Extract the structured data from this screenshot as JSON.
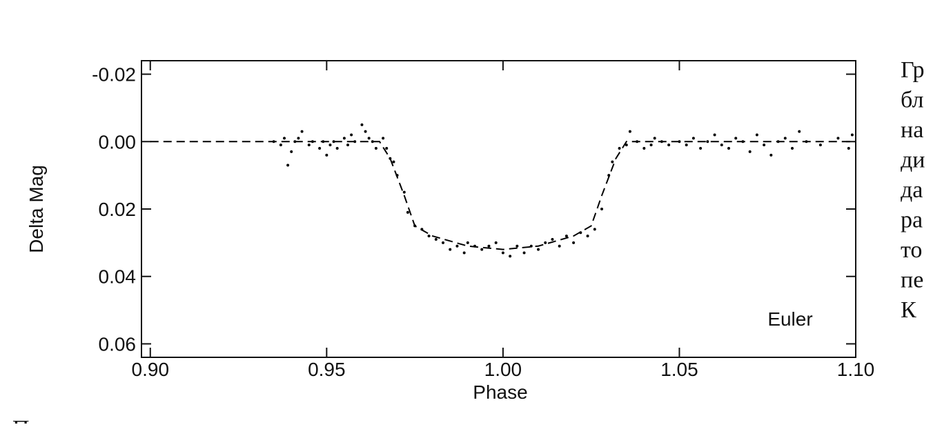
{
  "chart_data": {
    "type": "scatter",
    "xlabel": "Phase",
    "ylabel": "Delta Mag",
    "annotation": "Euler",
    "xlim": [
      0.8975,
      1.1
    ],
    "ylim": [
      -0.024,
      0.064
    ],
    "y_inverted": true,
    "xticks": [
      {
        "value": 0.9,
        "label": "0.90"
      },
      {
        "value": 0.95,
        "label": "0.95"
      },
      {
        "value": 1.0,
        "label": "1.00"
      },
      {
        "value": 1.05,
        "label": "1.05"
      },
      {
        "value": 1.1,
        "label": "1.10"
      }
    ],
    "yticks": [
      {
        "value": -0.02,
        "label": "-0.02"
      },
      {
        "value": 0,
        "label": "0.00"
      },
      {
        "value": 0.02,
        "label": "0.02"
      },
      {
        "value": 0.04,
        "label": "0.04"
      },
      {
        "value": 0.06,
        "label": "0.06"
      }
    ],
    "series": [
      {
        "type": "scatter",
        "color": "#000000",
        "x": [
          0.935,
          0.937,
          0.938,
          0.939,
          0.94,
          0.941,
          0.942,
          0.943,
          0.945,
          0.946,
          0.948,
          0.949,
          0.95,
          0.951,
          0.952,
          0.953,
          0.955,
          0.956,
          0.957,
          0.958,
          0.96,
          0.961,
          0.962,
          0.963,
          0.964,
          0.966,
          0.967,
          0.968,
          0.969,
          0.97,
          0.972,
          0.973,
          0.975,
          0.977,
          0.979,
          0.981,
          0.983,
          0.985,
          0.987,
          0.989,
          0.99,
          0.992,
          0.994,
          0.996,
          0.998,
          1.0,
          1.002,
          1.004,
          1.006,
          1.008,
          1.01,
          1.012,
          1.014,
          1.016,
          1.018,
          1.02,
          1.022,
          1.024,
          1.026,
          1.028,
          1.03,
          1.031,
          1.033,
          1.035,
          1.036,
          1.038,
          1.04,
          1.042,
          1.043,
          1.045,
          1.047,
          1.05,
          1.052,
          1.054,
          1.056,
          1.058,
          1.06,
          1.062,
          1.064,
          1.066,
          1.068,
          1.07,
          1.072,
          1.074,
          1.076,
          1.078,
          1.08,
          1.082,
          1.084,
          1.086,
          1.09,
          1.095,
          1.098,
          1.099
        ],
        "values": [
          0.0,
          0.001,
          -0.001,
          0.007,
          0.003,
          0.0,
          -0.001,
          -0.003,
          0.001,
          0.0,
          0.002,
          0.0,
          0.004,
          0.001,
          0.0,
          0.002,
          -0.001,
          0.001,
          -0.002,
          0.0,
          -0.005,
          -0.003,
          -0.001,
          0.0,
          0.002,
          -0.001,
          0.002,
          0.005,
          0.006,
          0.01,
          0.015,
          0.021,
          0.025,
          0.026,
          0.028,
          0.029,
          0.03,
          0.032,
          0.031,
          0.033,
          0.03,
          0.031,
          0.032,
          0.031,
          0.03,
          0.033,
          0.034,
          0.031,
          0.033,
          0.031,
          0.032,
          0.03,
          0.029,
          0.031,
          0.028,
          0.03,
          0.027,
          0.028,
          0.026,
          0.02,
          0.01,
          0.006,
          0.002,
          0.001,
          -0.003,
          0.0,
          0.002,
          0.001,
          -0.001,
          0.0,
          0.001,
          0.0,
          0.001,
          -0.001,
          0.002,
          0.0,
          -0.002,
          0.001,
          0.002,
          -0.001,
          0.0,
          0.003,
          -0.002,
          0.001,
          0.004,
          0.0,
          -0.001,
          0.002,
          -0.003,
          0.0,
          0.001,
          -0.001,
          0.002,
          -0.002
        ]
      },
      {
        "type": "line",
        "dashed": true,
        "color": "#000000",
        "x": [
          0.9,
          0.965,
          0.968,
          0.972,
          0.975,
          0.98,
          0.99,
          1.0,
          1.01,
          1.02,
          1.025,
          1.028,
          1.032,
          1.035,
          1.1
        ],
        "values": [
          0,
          0,
          0.005,
          0.016,
          0.025,
          0.028,
          0.031,
          0.032,
          0.031,
          0.028,
          0.025,
          0.016,
          0.005,
          0,
          0
        ]
      }
    ]
  },
  "side_text": [
    "Гр",
    "бл",
    "на",
    "ди",
    "да",
    "ра",
    "то",
    "пе",
    "К"
  ],
  "bottom_text": "П"
}
